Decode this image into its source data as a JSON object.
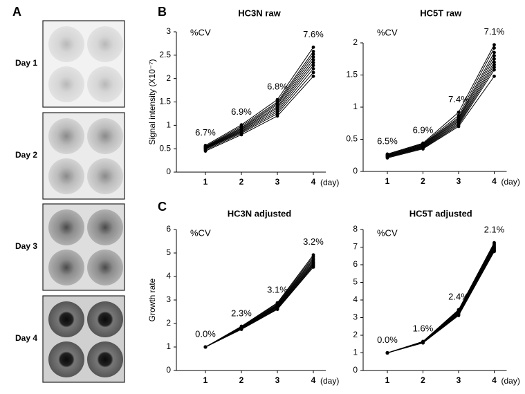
{
  "panel_labels": [
    "A",
    "B",
    "C"
  ],
  "well_panel": {
    "labels": [
      "Day 1",
      "Day 2",
      "Day 3",
      "Day 4"
    ]
  },
  "chart_data": [
    {
      "type": "line",
      "title": "HC3N raw",
      "ylabel": "Signal intensity (X10⁻⁷)",
      "x_unit": "(day)",
      "categories": [
        "1",
        "2",
        "3",
        "4"
      ],
      "ylim": [
        0,
        3
      ],
      "yticks": [
        0,
        0.5,
        1,
        1.5,
        2,
        2.5,
        3
      ],
      "color": "#000000",
      "cv_title": "%CV",
      "cv_labels": [
        "6.7%",
        "6.9%",
        "6.8%",
        "7.6%"
      ],
      "series": [
        {
          "values": [
            0.57,
            1.01,
            1.55,
            2.67
          ]
        },
        {
          "values": [
            0.55,
            0.98,
            1.5,
            2.58
          ]
        },
        {
          "values": [
            0.54,
            0.95,
            1.47,
            2.52
          ]
        },
        {
          "values": [
            0.53,
            0.93,
            1.44,
            2.46
          ]
        },
        {
          "values": [
            0.52,
            0.91,
            1.4,
            2.4
          ]
        },
        {
          "values": [
            0.51,
            0.89,
            1.37,
            2.34
          ]
        },
        {
          "values": [
            0.5,
            0.87,
            1.33,
            2.28
          ]
        },
        {
          "values": [
            0.49,
            0.85,
            1.29,
            2.21
          ]
        },
        {
          "values": [
            0.47,
            0.83,
            1.25,
            2.13
          ]
        },
        {
          "values": [
            0.45,
            0.8,
            1.2,
            2.05
          ]
        }
      ]
    },
    {
      "type": "line",
      "title": "HC5T raw",
      "x_unit": "(day)",
      "categories": [
        "1",
        "2",
        "3",
        "4"
      ],
      "ylim": [
        0,
        2
      ],
      "yticks": [
        0,
        0.5,
        1,
        1.5,
        2
      ],
      "color": "#000000",
      "cv_title": "%CV",
      "cv_labels": [
        "6.5%",
        "6.9%",
        "7.4%",
        "7.1%"
      ],
      "series": [
        {
          "values": [
            0.27,
            0.44,
            0.92,
            1.97
          ]
        },
        {
          "values": [
            0.26,
            0.43,
            0.87,
            1.92
          ]
        },
        {
          "values": [
            0.25,
            0.42,
            0.84,
            1.85
          ]
        },
        {
          "values": [
            0.25,
            0.41,
            0.82,
            1.8
          ]
        },
        {
          "values": [
            0.24,
            0.4,
            0.8,
            1.75
          ]
        },
        {
          "values": [
            0.24,
            0.39,
            0.78,
            1.7
          ]
        },
        {
          "values": [
            0.23,
            0.38,
            0.76,
            1.66
          ]
        },
        {
          "values": [
            0.23,
            0.37,
            0.74,
            1.62
          ]
        },
        {
          "values": [
            0.22,
            0.36,
            0.72,
            1.58
          ]
        },
        {
          "values": [
            0.21,
            0.35,
            0.7,
            1.48
          ]
        }
      ]
    },
    {
      "type": "line",
      "title": "HC3N adjusted",
      "ylabel": "Growth rate",
      "x_unit": "(day)",
      "categories": [
        "1",
        "2",
        "3",
        "4"
      ],
      "ylim": [
        0,
        6
      ],
      "yticks": [
        0,
        1,
        2,
        3,
        4,
        5,
        6
      ],
      "color": "#000000",
      "cv_title": "%CV",
      "cv_labels": [
        "0.0%",
        "2.3%",
        "3.1%",
        "3.2%"
      ],
      "series": [
        {
          "values": [
            1,
            1.88,
            2.88,
            4.92
          ]
        },
        {
          "values": [
            1,
            1.86,
            2.84,
            4.85
          ]
        },
        {
          "values": [
            1,
            1.84,
            2.8,
            4.78
          ]
        },
        {
          "values": [
            1,
            1.83,
            2.77,
            4.72
          ]
        },
        {
          "values": [
            1,
            1.82,
            2.74,
            4.66
          ]
        },
        {
          "values": [
            1,
            1.8,
            2.71,
            4.6
          ]
        },
        {
          "values": [
            1,
            1.79,
            2.68,
            4.55
          ]
        },
        {
          "values": [
            1,
            1.77,
            2.65,
            4.5
          ]
        },
        {
          "values": [
            1,
            1.76,
            2.62,
            4.45
          ]
        },
        {
          "values": [
            1,
            1.75,
            2.6,
            4.4
          ]
        }
      ]
    },
    {
      "type": "line",
      "title": "HC5T adjusted",
      "x_unit": "(day)",
      "categories": [
        "1",
        "2",
        "3",
        "4"
      ],
      "ylim": [
        0,
        8
      ],
      "yticks": [
        0,
        1,
        2,
        3,
        4,
        5,
        6,
        7,
        8
      ],
      "color": "#000000",
      "cv_title": "%CV",
      "cv_labels": [
        "0.0%",
        "1.6%",
        "2.4%",
        "2.1%"
      ],
      "series": [
        {
          "values": [
            1,
            1.65,
            3.45,
            7.25
          ]
        },
        {
          "values": [
            1,
            1.64,
            3.4,
            7.18
          ]
        },
        {
          "values": [
            1,
            1.63,
            3.36,
            7.12
          ]
        },
        {
          "values": [
            1,
            1.62,
            3.32,
            7.06
          ]
        },
        {
          "values": [
            1,
            1.61,
            3.28,
            7.0
          ]
        },
        {
          "values": [
            1,
            1.6,
            3.25,
            6.95
          ]
        },
        {
          "values": [
            1,
            1.59,
            3.22,
            6.9
          ]
        },
        {
          "values": [
            1,
            1.58,
            3.19,
            6.85
          ]
        },
        {
          "values": [
            1,
            1.57,
            3.16,
            6.8
          ]
        },
        {
          "values": [
            1,
            1.56,
            3.12,
            6.75
          ]
        }
      ]
    }
  ]
}
